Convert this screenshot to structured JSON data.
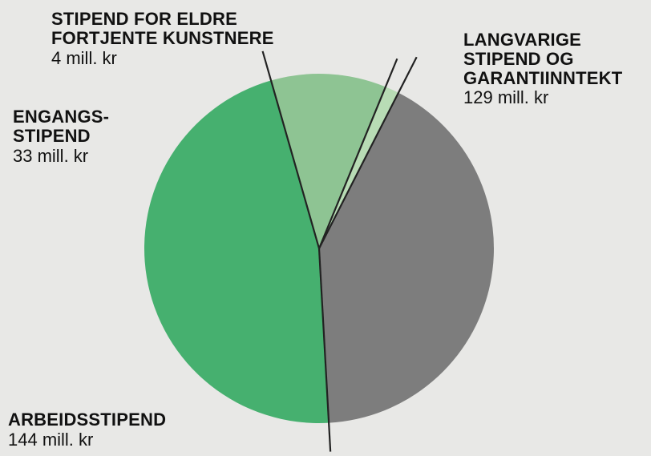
{
  "chart_data": {
    "type": "pie",
    "unit": "mill. kr",
    "start_angle_deg": 27,
    "slices": [
      {
        "name": "LANGVARIGE\nSTIPEND OG\nGARANTIINNTEKT",
        "value": 129,
        "value_label": "129 mill. kr",
        "color": "#7d7d7d"
      },
      {
        "name": "ARBEIDSSTIPEND",
        "value": 144,
        "value_label": "144 mill. kr",
        "color": "#46b06f"
      },
      {
        "name": "ENGANGS-\nSTIPEND",
        "value": 33,
        "value_label": "33 mill. kr",
        "color": "#8ec493"
      },
      {
        "name": "STIPEND FOR ELDRE\nFORTJENTE KUNSTNERE",
        "value": 4,
        "value_label": "4 mill. kr",
        "color": "#b8dcb5"
      }
    ]
  }
}
